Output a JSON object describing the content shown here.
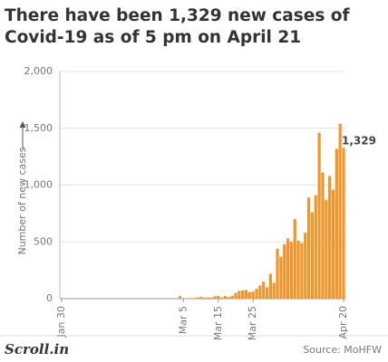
{
  "chart_data": {
    "type": "bar",
    "title": "There have been 1,329 new cases of Covid-19 as of 5 pm on April 21",
    "y_label": "Number of new cases",
    "categories": [
      "Jan 30",
      null,
      null,
      null,
      null,
      null,
      null,
      null,
      null,
      null,
      null,
      null,
      null,
      null,
      null,
      null,
      null,
      null,
      null,
      null,
      null,
      null,
      null,
      null,
      null,
      null,
      null,
      null,
      null,
      null,
      null,
      null,
      null,
      null,
      null,
      "Mar 5",
      null,
      null,
      null,
      null,
      null,
      null,
      null,
      null,
      null,
      "Mar 15",
      null,
      null,
      null,
      null,
      null,
      null,
      null,
      null,
      null,
      "Mar 25",
      null,
      null,
      null,
      null,
      null,
      null,
      null,
      null,
      null,
      null,
      null,
      null,
      null,
      null,
      null,
      null,
      null,
      null,
      null,
      null,
      null,
      null,
      null,
      null,
      null,
      "Apr 20"
    ],
    "values": [
      0,
      0,
      0,
      0,
      0,
      0,
      0,
      0,
      0,
      0,
      0,
      0,
      0,
      0,
      0,
      0,
      0,
      0,
      0,
      0,
      0,
      0,
      0,
      0,
      0,
      0,
      0,
      0,
      0,
      0,
      0,
      0,
      2,
      1,
      22,
      2,
      1,
      3,
      5,
      9,
      15,
      8,
      10,
      8,
      21,
      24,
      10,
      23,
      14,
      25,
      51,
      68,
      72,
      77,
      57,
      62,
      86,
      116,
      150,
      100,
      220,
      140,
      440,
      370,
      480,
      530,
      500,
      700,
      510,
      490,
      580,
      890,
      760,
      910,
      1460,
      1110,
      870,
      1080,
      960,
      1320,
      1540,
      1329
    ],
    "value_labels": [
      null,
      null,
      null,
      null,
      null,
      null,
      null,
      null,
      null,
      null,
      null,
      null,
      null,
      null,
      null,
      null,
      null,
      null,
      null,
      null,
      null,
      null,
      null,
      null,
      null,
      null,
      null,
      null,
      null,
      null,
      null,
      null,
      null,
      null,
      null,
      null,
      null,
      null,
      null,
      null,
      null,
      null,
      null,
      null,
      null,
      null,
      null,
      null,
      null,
      null,
      null,
      null,
      null,
      null,
      null,
      null,
      null,
      null,
      null,
      null,
      null,
      null,
      null,
      null,
      null,
      null,
      null,
      null,
      null,
      null,
      null,
      null,
      null,
      null,
      null,
      null,
      null,
      null,
      null,
      null,
      null,
      "1,329"
    ],
    "color": "#f0962a",
    "ylim": [
      0,
      2000
    ],
    "yticks": [
      0,
      500,
      {
        "value": 1000,
        "label": "1,000"
      },
      {
        "value": 1500,
        "label": "1,500"
      },
      {
        "value": 2000,
        "label": "2,000"
      }
    ],
    "grid": true
  },
  "footer": {
    "logo": "Scroll.in",
    "source": "Source: MoHFW"
  }
}
